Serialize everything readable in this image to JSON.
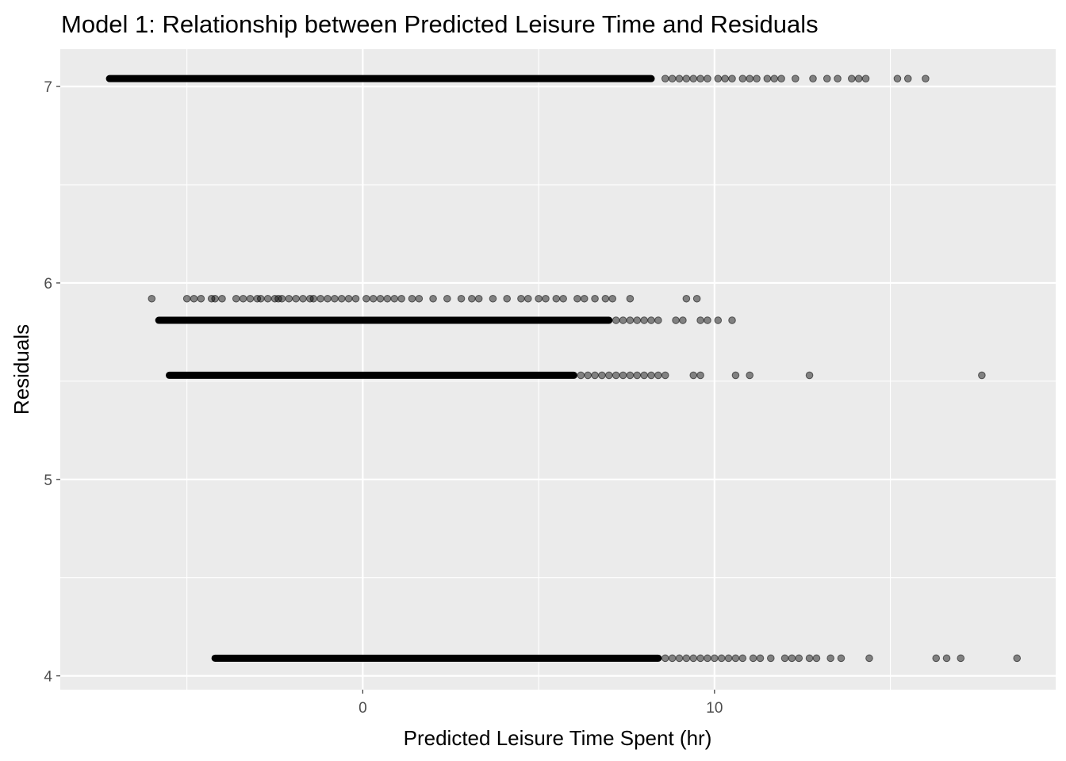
{
  "chart_data": {
    "type": "scatter",
    "title": "Model 1: Relationship between Predicted Leisure Time and Residuals",
    "xlabel": "Predicted Leisure Time Spent (hr)",
    "ylabel": "Residuals",
    "xlim": [
      -8.6,
      19.7
    ],
    "ylim": [
      3.93,
      7.19
    ],
    "x_ticks": [
      0,
      10
    ],
    "y_ticks": [
      4,
      5,
      6,
      7
    ],
    "grid": true,
    "legend": "none",
    "colors": {
      "panel": "#ebebeb",
      "grid": "#ffffff",
      "point": "#000000"
    },
    "point_alpha": 0.45,
    "series": [
      {
        "y": 7.04,
        "dense_range": [
          -7.2,
          8.2
        ],
        "x": [
          8.6,
          8.8,
          9.0,
          9.2,
          9.4,
          9.6,
          9.8,
          10.1,
          10.3,
          10.5,
          10.8,
          11.0,
          11.2,
          11.5,
          11.7,
          11.9,
          12.3,
          12.8,
          13.2,
          13.5,
          13.9,
          14.1,
          14.3,
          15.2,
          15.5,
          16.0
        ]
      },
      {
        "y": 5.92,
        "dense_range": null,
        "x": [
          -6.0,
          -5.0,
          -4.8,
          -4.6,
          -4.3,
          -4.2,
          -4.0,
          -3.6,
          -3.4,
          -3.2,
          -3.0,
          -2.9,
          -2.7,
          -2.5,
          -2.4,
          -2.3,
          -2.1,
          -1.9,
          -1.7,
          -1.5,
          -1.4,
          -1.2,
          -1.0,
          -0.8,
          -0.6,
          -0.4,
          -0.2,
          0.1,
          0.3,
          0.5,
          0.7,
          0.9,
          1.1,
          1.4,
          1.6,
          2.0,
          2.4,
          2.8,
          3.1,
          3.3,
          3.7,
          4.1,
          4.5,
          4.7,
          5.0,
          5.2,
          5.5,
          5.7,
          6.1,
          6.3,
          6.6,
          6.9,
          7.1,
          7.6,
          9.2,
          9.5
        ]
      },
      {
        "y": 5.81,
        "dense_range": [
          -5.8,
          7.0
        ],
        "x": [
          7.2,
          7.4,
          7.6,
          7.8,
          8.0,
          8.2,
          8.4,
          8.9,
          9.1,
          9.6,
          9.8,
          10.1,
          10.5
        ]
      },
      {
        "y": 5.53,
        "dense_range": [
          -5.5,
          6.0
        ],
        "x": [
          6.2,
          6.4,
          6.6,
          6.8,
          7.0,
          7.2,
          7.4,
          7.6,
          7.8,
          8.0,
          8.2,
          8.4,
          8.6,
          9.4,
          9.6,
          10.6,
          11.0,
          12.7,
          17.6
        ]
      },
      {
        "y": 4.09,
        "dense_range": [
          -4.2,
          8.4
        ],
        "x": [
          8.6,
          8.8,
          9.0,
          9.2,
          9.4,
          9.6,
          9.8,
          10.0,
          10.2,
          10.4,
          10.6,
          10.8,
          11.1,
          11.3,
          11.6,
          12.0,
          12.2,
          12.4,
          12.7,
          12.9,
          13.3,
          13.6,
          14.4,
          16.3,
          16.6,
          17.0,
          18.6
        ]
      }
    ]
  }
}
